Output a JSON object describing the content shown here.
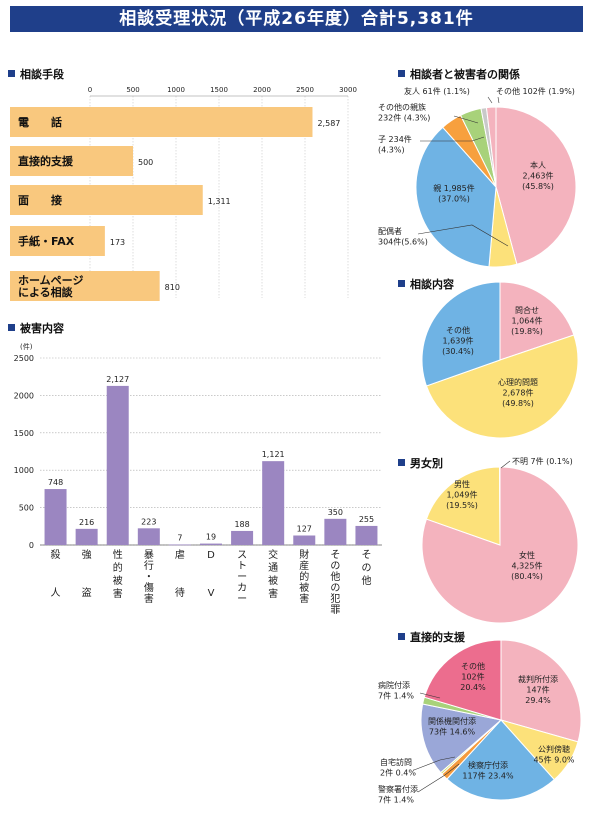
{
  "header": {
    "title": "相談受理状況（平成26年度）合計5,381件"
  },
  "sections": {
    "method": "相談手段",
    "damage": "被害内容",
    "relation": "相談者と被害者の関係",
    "content": "相談内容",
    "gender": "男女別",
    "support": "直接的支援"
  },
  "colors": {
    "header": "#1f3f8a",
    "bar_orange": "#f9c87e",
    "bar_purple": "#9b86c1",
    "pink": "#f4b3be",
    "yellow": "#fce17a",
    "blue": "#6fb3e4",
    "orange": "#f7a03e",
    "green": "#a8d27a",
    "gray": "#c9c9c9",
    "magenta": "#ec6d8e",
    "periwinkle": "#9aa7d8",
    "lime": "#cfe06c",
    "orange2": "#f59b3d"
  },
  "chart_data": [
    {
      "id": "method",
      "type": "bar",
      "orientation": "horizontal",
      "categories": [
        "電　　話",
        "直接的支援",
        "面　　接",
        "手紙・FAX",
        "ホームページ\nによる相談"
      ],
      "values": [
        2587,
        500,
        1311,
        173,
        810
      ],
      "value_labels": [
        "2,587",
        "500",
        "1,311",
        "173",
        "810"
      ],
      "xlim": [
        0,
        3000
      ],
      "xticks": [
        "0",
        "500",
        "1000",
        "1500",
        "2000",
        "2500",
        "3000"
      ]
    },
    {
      "id": "damage",
      "type": "bar",
      "orientation": "vertical",
      "ylabel": "(件)",
      "categories": [
        "殺人",
        "強盗",
        "性的被害",
        "暴行・傷害",
        "虐待",
        "DV",
        "ストーカー",
        "交通被害",
        "財産的被害",
        "その他の犯罪",
        "その他"
      ],
      "values": [
        748,
        216,
        2127,
        223,
        7,
        19,
        188,
        1121,
        127,
        350,
        255
      ],
      "value_labels": [
        "748",
        "216",
        "2,127",
        "223",
        "7",
        "19",
        "188",
        "1,121",
        "127",
        "350",
        "255"
      ],
      "ylim": [
        0,
        2500
      ],
      "yticks": [
        "0",
        "500",
        "1000",
        "1500",
        "2000",
        "2500"
      ]
    },
    {
      "id": "relation",
      "type": "pie",
      "slices": [
        {
          "name": "本人",
          "value": 45.8,
          "count": "2,463件",
          "pct": "(45.8%)",
          "color": "pink"
        },
        {
          "name": "配偶者",
          "value": 5.6,
          "count": "304件",
          "pct": "(5.6%)",
          "color": "yellow"
        },
        {
          "name": "親",
          "value": 37.0,
          "count": "1,985件",
          "pct": "(37.0%)",
          "color": "blue"
        },
        {
          "name": "子",
          "value": 4.3,
          "count": "234件",
          "pct": "(4.3%)",
          "color": "orange"
        },
        {
          "name": "その他の親族",
          "value": 4.3,
          "count": "232件",
          "pct": "(4.3%)",
          "color": "green"
        },
        {
          "name": "友人",
          "value": 1.1,
          "count": "61件",
          "pct": "(1.1%)",
          "color": "gray"
        },
        {
          "name": "その他",
          "value": 1.9,
          "count": "102件",
          "pct": "(1.9%)",
          "color": "pink"
        }
      ]
    },
    {
      "id": "content",
      "type": "pie",
      "slices": [
        {
          "name": "問合せ",
          "value": 19.8,
          "count": "1,064件",
          "pct": "(19.8%)",
          "color": "pink"
        },
        {
          "name": "心理的問題",
          "value": 49.8,
          "count": "2,678件",
          "pct": "(49.8%)",
          "color": "yellow"
        },
        {
          "name": "その他",
          "value": 30.4,
          "count": "1,639件",
          "pct": "(30.4%)",
          "color": "blue"
        }
      ]
    },
    {
      "id": "gender",
      "type": "pie",
      "slices": [
        {
          "name": "女性",
          "value": 80.4,
          "count": "4,325件",
          "pct": "(80.4%)",
          "color": "pink"
        },
        {
          "name": "男性",
          "value": 19.5,
          "count": "1,049件",
          "pct": "(19.5%)",
          "color": "yellow"
        },
        {
          "name": "不明",
          "value": 0.1,
          "count": "7件",
          "pct": "(0.1%)",
          "color": "gray"
        }
      ]
    },
    {
      "id": "support",
      "type": "pie",
      "slices": [
        {
          "name": "裁判所付添",
          "value": 29.4,
          "count": "147件",
          "pct": "29.4%",
          "color": "pink"
        },
        {
          "name": "公判傍聴",
          "value": 9.0,
          "count": "45件",
          "pct": "9.0%",
          "color": "yellow"
        },
        {
          "name": "検察庁付添",
          "value": 23.4,
          "count": "117件",
          "pct": "23.4%",
          "color": "blue"
        },
        {
          "name": "警察署付添",
          "value": 1.4,
          "count": "7件",
          "pct": "1.4%",
          "color": "orange2"
        },
        {
          "name": "自宅訪問",
          "value": 0.4,
          "count": "2件",
          "pct": "0.4%",
          "color": "lime"
        },
        {
          "name": "関係機関付添",
          "value": 14.6,
          "count": "73件",
          "pct": "14.6%",
          "color": "periwinkle"
        },
        {
          "name": "病院付添",
          "value": 1.4,
          "count": "7件",
          "pct": "1.4%",
          "color": "green"
        },
        {
          "name": "その他",
          "value": 20.4,
          "count": "102件",
          "pct": "20.4%",
          "color": "magenta"
        }
      ]
    }
  ]
}
